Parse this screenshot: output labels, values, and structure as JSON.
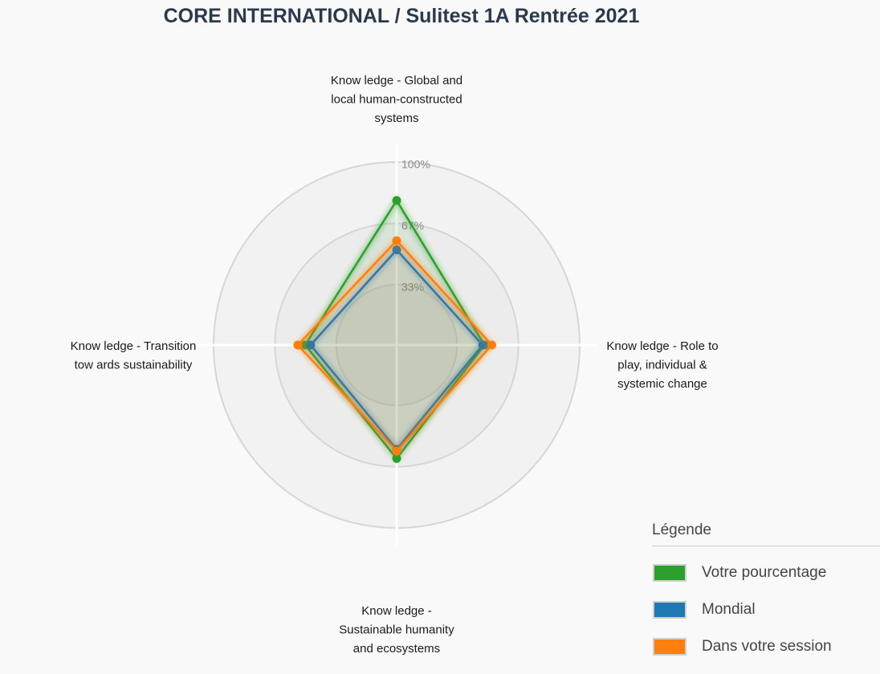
{
  "title": "CORE INTERNATIONAL / Sulitest 1A Rentrée 2021",
  "chart_data": {
    "type": "radar",
    "title": "CORE INTERNATIONAL / Sulitest 1A Rentrée 2021",
    "axes": [
      {
        "lines": [
          "Know ledge - Global and",
          "local human-constructed",
          "systems"
        ]
      },
      {
        "lines": [
          "Know ledge - Role to",
          "play, individual &",
          "systemic change"
        ]
      },
      {
        "lines": [
          "Know ledge -",
          "Sustainable humanity",
          "and ecosystems"
        ]
      },
      {
        "lines": [
          "Know ledge - Transition",
          "tow ards sustainability"
        ]
      }
    ],
    "ticks": [
      "33%",
      "67%",
      "100%"
    ],
    "tick_values": [
      33,
      67,
      100
    ],
    "range": [
      0,
      100
    ],
    "series": [
      {
        "name": "Votre pourcentage",
        "color": "#2ca02c",
        "values": [
          79,
          48,
          62,
          50
        ]
      },
      {
        "name": "Mondial",
        "color": "#1f77b4",
        "values": [
          52,
          47,
          57,
          47
        ]
      },
      {
        "name": "Dans votre session",
        "color": "#ff7f0e",
        "values": [
          57,
          52,
          58,
          54
        ]
      }
    ]
  },
  "legend": {
    "title": "Légende",
    "items": [
      {
        "label": "Votre pourcentage",
        "color": "#2ca02c"
      },
      {
        "label": "Mondial",
        "color": "#1f77b4"
      },
      {
        "label": "Dans votre session",
        "color": "#ff7f0e"
      }
    ]
  }
}
